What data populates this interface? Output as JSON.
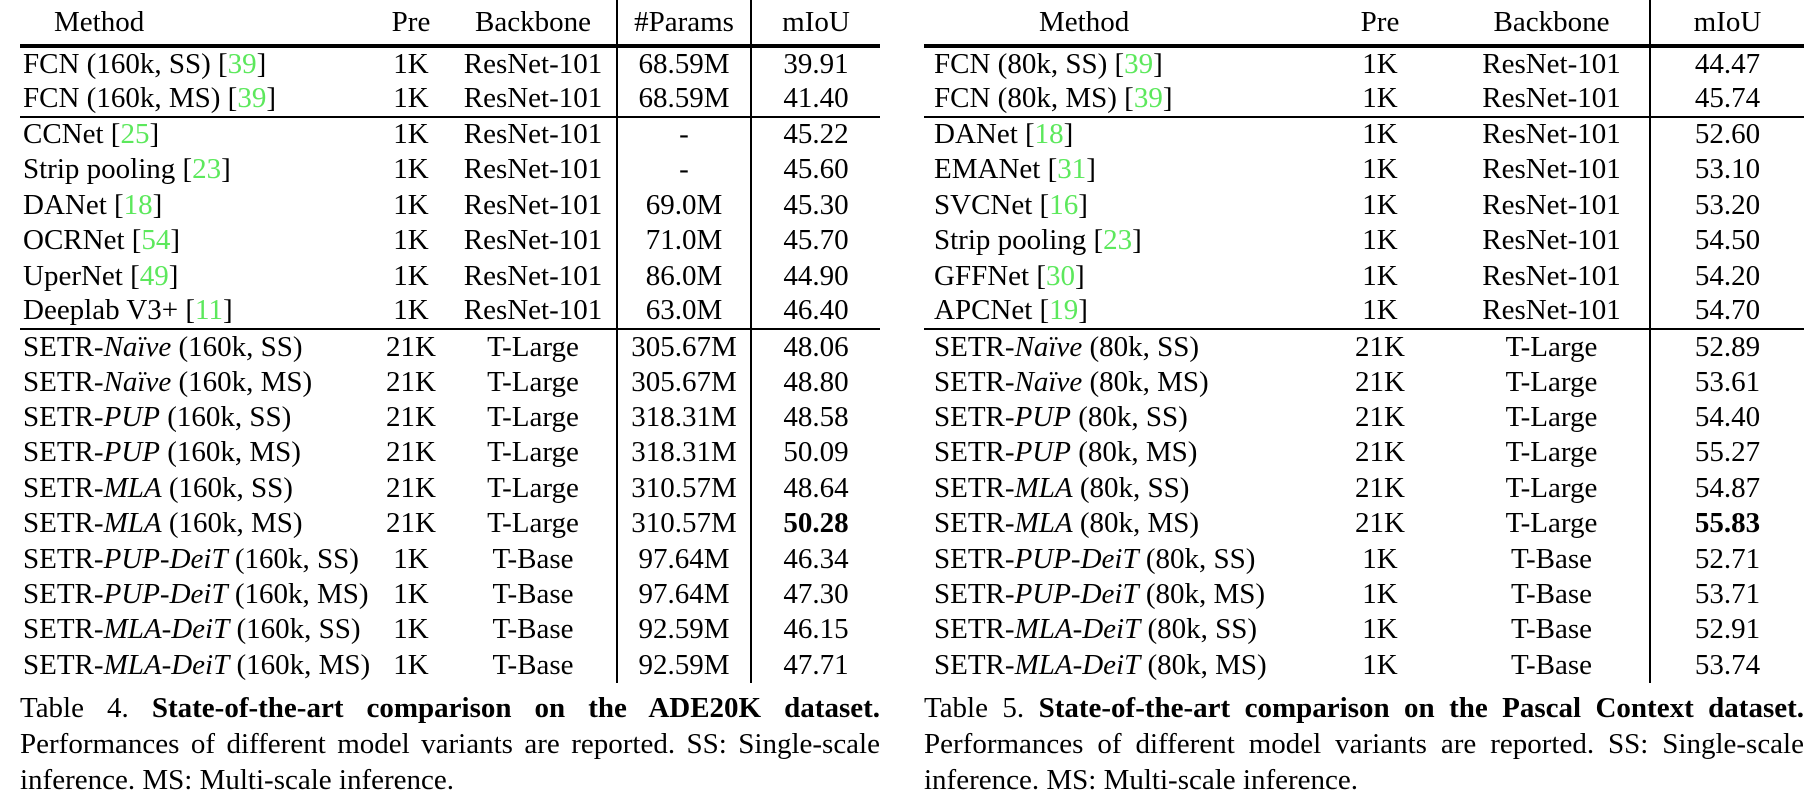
{
  "page": {
    "background": "#ffffff",
    "text_color": "#000000",
    "citation_color": "#5ce85c"
  },
  "tables": [
    {
      "name": "State-of-the-art comparison on the ADE20K dataset",
      "columns": [
        "Method",
        "Pre",
        "Backbone",
        "#Params",
        "mIoU"
      ],
      "groups": [
        [
          [
            "FCN (160k, SS) [39]",
            "1K",
            "ResNet-101",
            "68.59M",
            "39.91"
          ],
          [
            "FCN (160k, MS) [39]",
            "1K",
            "ResNet-101",
            "68.59M",
            "41.40"
          ]
        ],
        [
          [
            "CCNet [25]",
            "1K",
            "ResNet-101",
            "-",
            "45.22"
          ],
          [
            "Strip pooling [23]",
            "1K",
            "ResNet-101",
            "-",
            "45.60"
          ],
          [
            "DANet [18]",
            "1K",
            "ResNet-101",
            "69.0M",
            "45.30"
          ],
          [
            "OCRNet [54]",
            "1K",
            "ResNet-101",
            "71.0M",
            "45.70"
          ],
          [
            "UperNet [49]",
            "1K",
            "ResNet-101",
            "86.0M",
            "44.90"
          ],
          [
            "Deeplab V3+ [11]",
            "1K",
            "ResNet-101",
            "63.0M",
            "46.40"
          ]
        ],
        [
          [
            "SETR-*Naïve* (160k, SS)",
            "21K",
            "T-Large",
            "305.67M",
            "48.06"
          ],
          [
            "SETR-*Naïve* (160k, MS)",
            "21K",
            "T-Large",
            "305.67M",
            "48.80"
          ],
          [
            "SETR-*PUP* (160k, SS)",
            "21K",
            "T-Large",
            "318.31M",
            "48.58"
          ],
          [
            "SETR-*PUP* (160k, MS)",
            "21K",
            "T-Large",
            "318.31M",
            "50.09"
          ],
          [
            "SETR-*MLA* (160k, SS)",
            "21K",
            "T-Large",
            "310.57M",
            "48.64"
          ],
          [
            "SETR-*MLA* (160k, MS)",
            "21K",
            "T-Large",
            "310.57M",
            "**50.28**"
          ],
          [
            "SETR-*PUP-DeiT* (160k, SS)",
            "1K",
            "T-Base",
            "97.64M",
            "46.34"
          ],
          [
            "SETR-*PUP-DeiT* (160k, MS)",
            "1K",
            "T-Base",
            "97.64M",
            "47.30"
          ],
          [
            "SETR-*MLA-DeiT* (160k, SS)",
            "1K",
            "T-Base",
            "92.59M",
            "46.15"
          ],
          [
            "SETR-*MLA-DeiT* (160k, MS)",
            "1K",
            "T-Base",
            "92.59M",
            "47.71"
          ]
        ]
      ],
      "caption": {
        "label": "Table 4.",
        "bold": "State-of-the-art comparison on the ADE20K dataset.",
        "rest": "Performances of different model variants are reported. SS: Single-scale inference. MS: Multi-scale inference."
      }
    },
    {
      "name": "State-of-the-art comparison on the Pascal Context dataset",
      "columns": [
        "Method",
        "Pre",
        "Backbone",
        "mIoU"
      ],
      "groups": [
        [
          [
            "FCN (80k, SS) [39]",
            "1K",
            "ResNet-101",
            "44.47"
          ],
          [
            "FCN (80k, MS) [39]",
            "1K",
            "ResNet-101",
            "45.74"
          ]
        ],
        [
          [
            "DANet [18]",
            "1K",
            "ResNet-101",
            "52.60"
          ],
          [
            "EMANet [31]",
            "1K",
            "ResNet-101",
            "53.10"
          ],
          [
            "SVCNet [16]",
            "1K",
            "ResNet-101",
            "53.20"
          ],
          [
            "Strip pooling [23]",
            "1K",
            "ResNet-101",
            "54.50"
          ],
          [
            "GFFNet [30]",
            "1K",
            "ResNet-101",
            "54.20"
          ],
          [
            "APCNet [19]",
            "1K",
            "ResNet-101",
            "54.70"
          ]
        ],
        [
          [
            "SETR-*Naïve* (80k, SS)",
            "21K",
            "T-Large",
            "52.89"
          ],
          [
            "SETR-*Naïve* (80k, MS)",
            "21K",
            "T-Large",
            "53.61"
          ],
          [
            "SETR-*PUP* (80k, SS)",
            "21K",
            "T-Large",
            "54.40"
          ],
          [
            "SETR-*PUP* (80k, MS)",
            "21K",
            "T-Large",
            "55.27"
          ],
          [
            "SETR-*MLA* (80k, SS)",
            "21K",
            "T-Large",
            "54.87"
          ],
          [
            "SETR-*MLA* (80k, MS)",
            "21K",
            "T-Large",
            "**55.83**"
          ],
          [
            "SETR-*PUP-DeiT* (80k, SS)",
            "1K",
            "T-Base",
            "52.71"
          ],
          [
            "SETR-*PUP-DeiT* (80k, MS)",
            "1K",
            "T-Base",
            "53.71"
          ],
          [
            "SETR-*MLA-DeiT* (80k, SS)",
            "1K",
            "T-Base",
            "52.91"
          ],
          [
            "SETR-*MLA-DeiT* (80k, MS)",
            "1K",
            "T-Base",
            "53.74"
          ]
        ]
      ],
      "caption": {
        "label": "Table 5.",
        "bold": "State-of-the-art comparison on the Pascal Context dataset.",
        "rest": "Performances of different model variants are reported. SS: Single-scale inference. MS: Multi-scale inference."
      }
    }
  ]
}
